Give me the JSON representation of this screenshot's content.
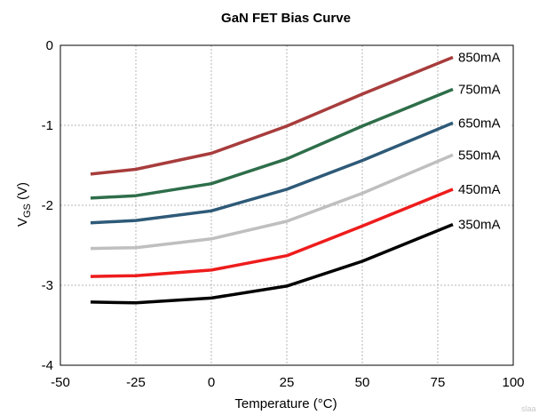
{
  "chart_data": {
    "type": "line",
    "title": "GaN FET Bias Curve",
    "xlabel": "Temperature (°C)",
    "ylabel_main": "V",
    "ylabel_sub": "GS",
    "ylabel_tail": " (V)",
    "xlim": [
      -50,
      100
    ],
    "ylim": [
      -4,
      0
    ],
    "xticks": [
      -50,
      -25,
      0,
      25,
      50,
      75,
      100
    ],
    "yticks": [
      0,
      -1,
      -2,
      -3,
      -4
    ],
    "grid": true,
    "legend": "inline-right",
    "x": [
      -40,
      -25,
      0,
      25,
      50,
      80
    ],
    "series": [
      {
        "name": "850mA",
        "color": "#a83c3c",
        "values": [
          -1.61,
          -1.55,
          -1.35,
          -1.01,
          -0.61,
          -0.15
        ]
      },
      {
        "name": "750mA",
        "color": "#2e6e4a",
        "values": [
          -1.91,
          -1.88,
          -1.73,
          -1.42,
          -1.01,
          -0.55
        ]
      },
      {
        "name": "650mA",
        "color": "#2e5a78",
        "values": [
          -2.22,
          -2.19,
          -2.07,
          -1.8,
          -1.44,
          -0.97
        ]
      },
      {
        "name": "550mA",
        "color": "#bfbfbf",
        "values": [
          -2.54,
          -2.53,
          -2.42,
          -2.2,
          -1.85,
          -1.37
        ]
      },
      {
        "name": "450mA",
        "color": "#ee1c1c",
        "values": [
          -2.89,
          -2.88,
          -2.81,
          -2.63,
          -2.26,
          -1.8
        ]
      },
      {
        "name": "350mA",
        "color": "#000000",
        "values": [
          -3.21,
          -3.22,
          -3.16,
          -3.01,
          -2.7,
          -2.24
        ]
      }
    ]
  },
  "watermark": "slaa"
}
